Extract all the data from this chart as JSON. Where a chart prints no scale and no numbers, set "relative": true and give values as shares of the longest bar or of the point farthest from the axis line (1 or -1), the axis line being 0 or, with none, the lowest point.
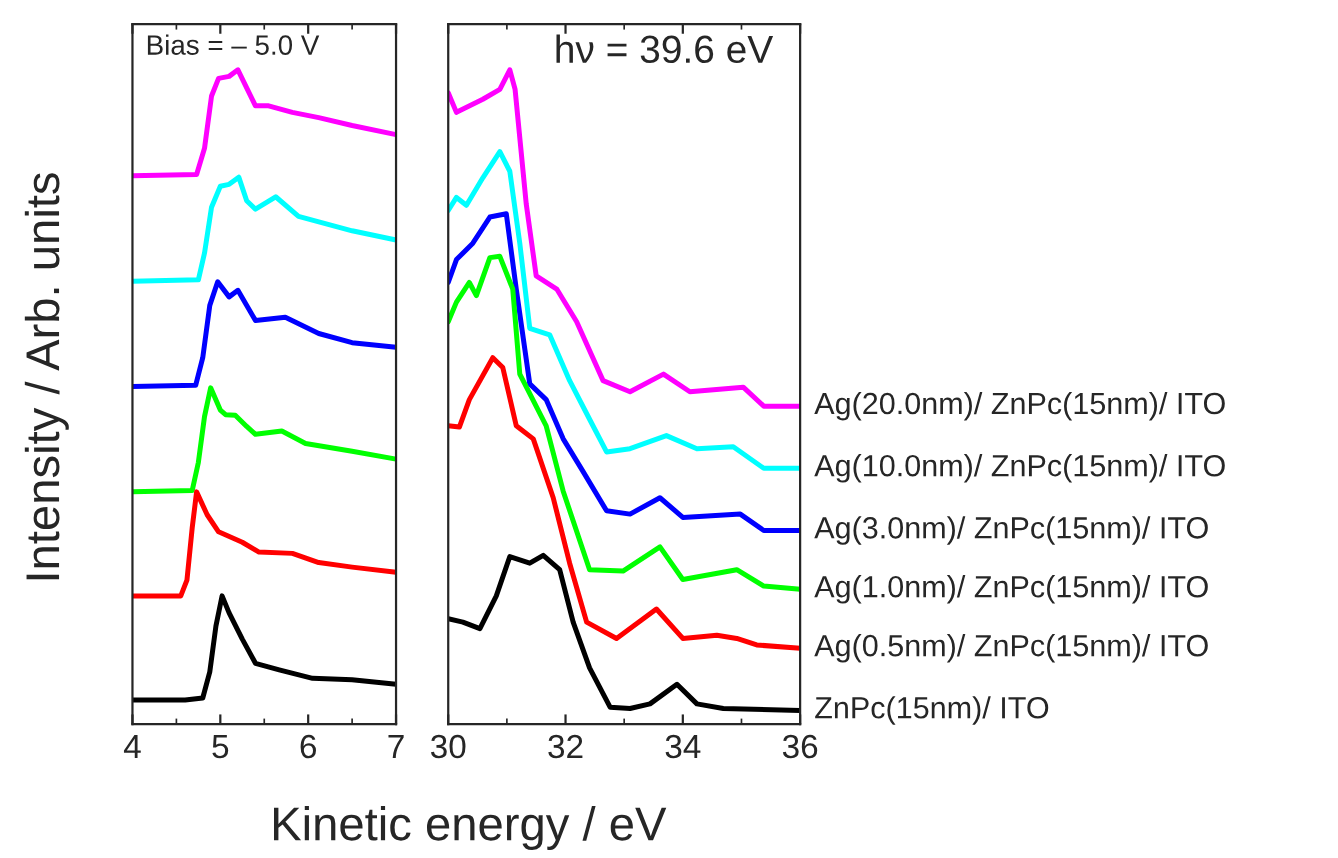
{
  "chart_data": [
    {
      "type": "line",
      "relative": true,
      "xlabel": "Kinetic energy / eV",
      "ylabel": "Intensity / Arb. units",
      "xlim": [
        4,
        7
      ],
      "xticks": [
        4,
        5,
        6,
        7
      ],
      "annotations": [
        "Bias = – 5.0 V"
      ],
      "series": [
        {
          "color": "#ff00ff",
          "x": [
            4,
            4.73,
            4.82,
            4.9,
            4.98,
            5.1,
            5.2,
            5.4,
            5.55,
            5.82,
            6.12,
            6.5,
            7
          ],
          "values": [
            0.838,
            0.84,
            0.88,
            0.96,
            0.987,
            0.99,
            1.0,
            0.945,
            0.945,
            0.935,
            0.927,
            0.915,
            0.901
          ]
        },
        {
          "color": "#00ffff",
          "x": [
            4,
            4.75,
            4.82,
            4.9,
            5.0,
            5.1,
            5.21,
            5.3,
            5.4,
            5.63,
            5.89,
            6.5,
            7
          ],
          "values": [
            0.677,
            0.679,
            0.72,
            0.79,
            0.822,
            0.825,
            0.836,
            0.8,
            0.787,
            0.806,
            0.776,
            0.754,
            0.74
          ]
        },
        {
          "color": "#0000ff",
          "x": [
            4,
            4.72,
            4.8,
            4.88,
            4.97,
            5.1,
            5.2,
            5.4,
            5.74,
            6.12,
            6.5,
            7
          ],
          "values": [
            0.516,
            0.518,
            0.56,
            0.64,
            0.676,
            0.653,
            0.663,
            0.617,
            0.622,
            0.597,
            0.583,
            0.576
          ]
        },
        {
          "color": "#00ff00",
          "x": [
            4,
            4.68,
            4.75,
            4.82,
            4.89,
            5.0,
            5.06,
            5.17,
            5.3,
            5.4,
            5.7,
            5.97,
            6.5,
            7
          ],
          "values": [
            0.355,
            0.357,
            0.4,
            0.47,
            0.514,
            0.48,
            0.473,
            0.472,
            0.455,
            0.443,
            0.448,
            0.429,
            0.417,
            0.405
          ]
        },
        {
          "color": "#ff0000",
          "x": [
            4,
            4.55,
            4.62,
            4.68,
            4.73,
            4.85,
            4.98,
            5.25,
            5.44,
            5.82,
            6.12,
            6.5,
            7
          ],
          "values": [
            0.196,
            0.196,
            0.22,
            0.3,
            0.355,
            0.32,
            0.294,
            0.278,
            0.263,
            0.261,
            0.247,
            0.24,
            0.232
          ]
        },
        {
          "color": "#000000",
          "x": [
            4,
            4.6,
            4.8,
            4.88,
            4.95,
            5.02,
            5.1,
            5.25,
            5.4,
            5.67,
            6.05,
            6.5,
            7
          ],
          "values": [
            0.037,
            0.037,
            0.04,
            0.08,
            0.15,
            0.196,
            0.17,
            0.13,
            0.093,
            0.083,
            0.07,
            0.068,
            0.061
          ]
        }
      ]
    },
    {
      "type": "line",
      "relative": true,
      "xlim": [
        30,
        36
      ],
      "xticks": [
        30,
        32,
        34,
        36
      ],
      "annotations": [
        "hν = 39.6 eV"
      ],
      "series": [
        {
          "name": "Ag(20.0nm)/ ZnPc(15nm)/ ITO",
          "color": "#ff00ff",
          "x": [
            30,
            30.14,
            30.59,
            30.88,
            31.05,
            31.14,
            31.33,
            31.5,
            31.85,
            32.19,
            32.64,
            33.1,
            33.67,
            34.12,
            35.03,
            35.38,
            36
          ],
          "values": [
            0.965,
            0.935,
            0.955,
            0.97,
            1.0,
            0.97,
            0.795,
            0.685,
            0.665,
            0.615,
            0.525,
            0.508,
            0.535,
            0.508,
            0.515,
            0.486,
            0.486
          ]
        },
        {
          "name": "Ag(10.0nm)/ ZnPc(15nm)/ ITO",
          "color": "#00ffff",
          "x": [
            30,
            30.14,
            30.31,
            30.59,
            30.88,
            31.05,
            31.22,
            31.39,
            31.73,
            32.07,
            32.41,
            32.7,
            33.1,
            33.72,
            34.24,
            34.86,
            35.38,
            36
          ],
          "values": [
            0.785,
            0.805,
            0.793,
            0.835,
            0.875,
            0.845,
            0.735,
            0.605,
            0.595,
            0.525,
            0.466,
            0.416,
            0.421,
            0.441,
            0.421,
            0.424,
            0.391,
            0.391
          ]
        },
        {
          "name": "Ag(3.0nm)/ ZnPc(15nm)/ ITO",
          "color": "#0000ff",
          "x": [
            30,
            30.14,
            30.42,
            30.71,
            30.99,
            31.16,
            31.39,
            31.67,
            31.96,
            32.3,
            32.7,
            33.1,
            33.61,
            34.0,
            34.98,
            35.38,
            36
          ],
          "values": [
            0.675,
            0.71,
            0.735,
            0.775,
            0.78,
            0.665,
            0.52,
            0.496,
            0.436,
            0.386,
            0.326,
            0.321,
            0.346,
            0.316,
            0.321,
            0.296,
            0.296
          ]
        },
        {
          "name": "Ag(1.0nm)/ ZnPc(15nm)/ ITO",
          "color": "#00ff00",
          "x": [
            30,
            30.14,
            30.36,
            30.48,
            30.71,
            30.88,
            31.1,
            31.22,
            31.39,
            31.67,
            31.96,
            32.41,
            32.98,
            33.61,
            34.0,
            34.92,
            35.38,
            36
          ],
          "values": [
            0.615,
            0.645,
            0.675,
            0.655,
            0.713,
            0.715,
            0.665,
            0.535,
            0.505,
            0.456,
            0.356,
            0.236,
            0.234,
            0.271,
            0.221,
            0.236,
            0.211,
            0.206
          ]
        },
        {
          "name": "Ag(0.5nm)/ ZnPc(15nm)/ ITO",
          "color": "#ff0000",
          "x": [
            30,
            30.19,
            30.36,
            30.76,
            30.93,
            31.16,
            31.45,
            31.79,
            32.07,
            32.36,
            32.87,
            33.55,
            34.0,
            34.58,
            34.92,
            35.26,
            36
          ],
          "values": [
            0.456,
            0.454,
            0.496,
            0.56,
            0.545,
            0.456,
            0.436,
            0.346,
            0.246,
            0.156,
            0.131,
            0.176,
            0.131,
            0.136,
            0.131,
            0.121,
            0.116
          ]
        },
        {
          "name": "ZnPc(15nm)/ ITO",
          "color": "#000000",
          "x": [
            30,
            30.25,
            30.54,
            30.82,
            31.05,
            31.39,
            31.62,
            31.9,
            32.13,
            32.41,
            32.76,
            33.1,
            33.44,
            33.9,
            34.24,
            34.69,
            36
          ],
          "values": [
            0.161,
            0.156,
            0.146,
            0.196,
            0.256,
            0.246,
            0.258,
            0.236,
            0.156,
            0.086,
            0.026,
            0.024,
            0.031,
            0.061,
            0.031,
            0.024,
            0.021
          ]
        }
      ]
    }
  ]
}
